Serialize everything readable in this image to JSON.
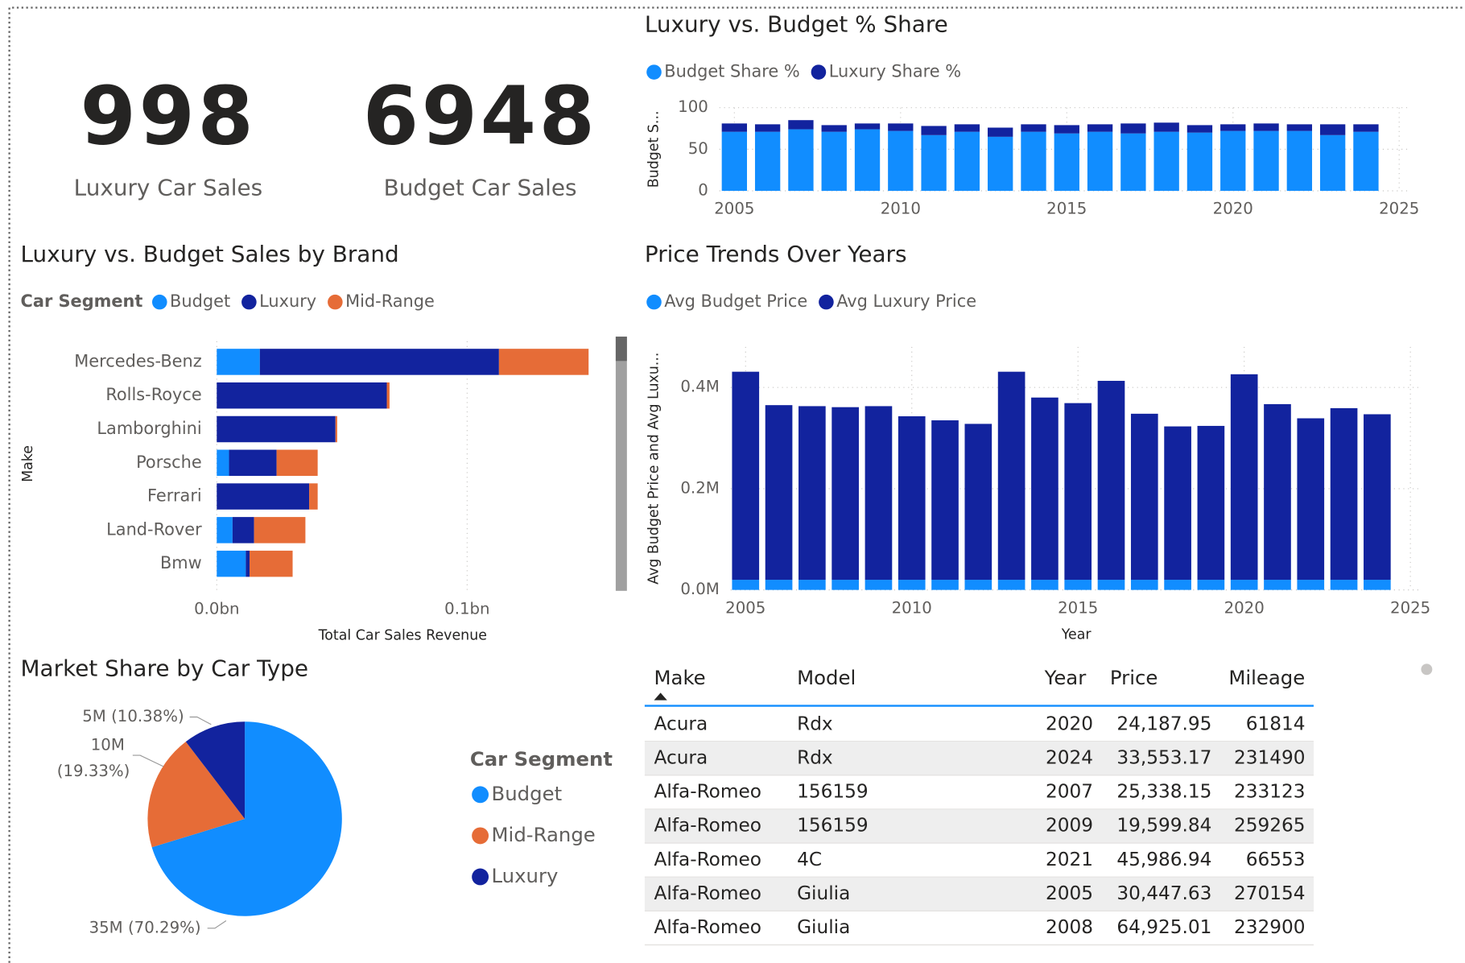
{
  "kpis": [
    {
      "value": 998,
      "label": "Luxury Car Sales"
    },
    {
      "value": 6948,
      "label": "Budget Car Sales"
    }
  ],
  "chart_data": [
    {
      "type": "bar",
      "title": "Luxury vs. Budget % Share",
      "y_label": "Budget S...",
      "x": [
        2005,
        2006,
        2007,
        2008,
        2009,
        2010,
        2011,
        2012,
        2013,
        2014,
        2015,
        2016,
        2017,
        2018,
        2019,
        2020,
        2021,
        2022,
        2023,
        2024
      ],
      "series": [
        {
          "name": "Budget Share %",
          "color": "#118DFF",
          "values": [
            71,
            71,
            74,
            71,
            74,
            72,
            67,
            71,
            65,
            71,
            69,
            71,
            69,
            71,
            70,
            72,
            72,
            72,
            67,
            71
          ]
        },
        {
          "name": "Luxury Share %",
          "color": "#12239E",
          "values": [
            10,
            9,
            11,
            8,
            7,
            9,
            11,
            9,
            11,
            9,
            10,
            9,
            12,
            11,
            9,
            8,
            9,
            8,
            13,
            9
          ]
        }
      ],
      "stacked": true,
      "xlim": [
        2004.55,
        2025.35
      ],
      "xticks": [
        2005,
        2010,
        2015,
        2020,
        2025
      ],
      "ylim": [
        0,
        100
      ],
      "yticks": [
        0,
        50,
        100
      ],
      "grid": true
    },
    {
      "type": "hbar",
      "title": "Luxury vs. Budget Sales by Brand",
      "legend_title": "Car Segment",
      "y_label": "Make",
      "x_label": "Total Car Sales Revenue",
      "categories": [
        "Mercedes-Benz",
        "Rolls-Royce",
        "Lamborghini",
        "Porsche",
        "Ferrari",
        "Land-Rover",
        "Bmw"
      ],
      "series": [
        {
          "name": "Budget",
          "color": "#118DFF",
          "values": [
            0.0172,
            0,
            0,
            0.0049,
            0,
            0.0063,
            0.0116
          ]
        },
        {
          "name": "Luxury",
          "color": "#12239E",
          "values": [
            0.0955,
            0.0679,
            0.0474,
            0.019,
            0.0369,
            0.0086,
            0.0015
          ]
        },
        {
          "name": "Mid-Range",
          "color": "#E66C37",
          "values": [
            0.0358,
            0.0011,
            0.0007,
            0.0164,
            0.0034,
            0.0205,
            0.0172
          ]
        }
      ],
      "stacked": true,
      "xlim": [
        0,
        0.15
      ],
      "xticks": [
        {
          "value": 0,
          "label": "0.0bn"
        },
        {
          "value": 0.1,
          "label": "0.1bn"
        }
      ],
      "grid": true
    },
    {
      "type": "bar",
      "title": "Price Trends Over Years",
      "y_label": "Avg Budget Price and Avg Luxu...",
      "x_label": "Year",
      "x": [
        2005,
        2006,
        2007,
        2008,
        2009,
        2010,
        2011,
        2012,
        2013,
        2014,
        2015,
        2016,
        2017,
        2018,
        2019,
        2020,
        2021,
        2022,
        2023,
        2024
      ],
      "series": [
        {
          "name": "Avg Budget Price",
          "color": "#118DFF",
          "values": [
            0.02,
            0.02,
            0.02,
            0.02,
            0.02,
            0.02,
            0.02,
            0.02,
            0.02,
            0.02,
            0.02,
            0.02,
            0.02,
            0.02,
            0.02,
            0.02,
            0.02,
            0.02,
            0.02,
            0.02
          ]
        },
        {
          "name": "Avg Luxury Price",
          "color": "#12239E",
          "values": [
            0.411,
            0.345,
            0.343,
            0.341,
            0.343,
            0.323,
            0.315,
            0.308,
            0.411,
            0.36,
            0.349,
            0.393,
            0.328,
            0.303,
            0.304,
            0.406,
            0.347,
            0.319,
            0.339,
            0.327
          ]
        }
      ],
      "stacked": true,
      "xlim": [
        2004.55,
        2025.35
      ],
      "xticks": [
        2005,
        2010,
        2015,
        2020,
        2025
      ],
      "ylim": [
        0,
        0.48
      ],
      "yticks": [
        {
          "value": 0,
          "label": "0.0M"
        },
        {
          "value": 0.2,
          "label": "0.2M"
        },
        {
          "value": 0.4,
          "label": "0.4M"
        }
      ],
      "grid": true
    },
    {
      "type": "pie",
      "title": "Market Share by Car Type",
      "legend_title": "Car Segment",
      "categories": [
        "Budget",
        "Mid-Range",
        "Luxury"
      ],
      "values": [
        70.29,
        19.33,
        10.38
      ],
      "value_labels": [
        "35M (70.29%)",
        "10M (19.33%)",
        "5M (10.38%)"
      ],
      "colors": [
        "#118DFF",
        "#E66C37",
        "#12239E"
      ]
    }
  ],
  "table": {
    "columns": [
      "Make",
      "Model",
      "Year",
      "Price",
      "Mileage"
    ],
    "rows": [
      [
        "Acura",
        "Rdx",
        2020,
        "24,187.95",
        61814
      ],
      [
        "Acura",
        "Rdx",
        2024,
        "33,553.17",
        231490
      ],
      [
        "Alfa-Romeo",
        "156159",
        2007,
        "25,338.15",
        233123
      ],
      [
        "Alfa-Romeo",
        "156159",
        2009,
        "19,599.84",
        259265
      ],
      [
        "Alfa-Romeo",
        "4C",
        2021,
        "45,986.94",
        66553
      ],
      [
        "Alfa-Romeo",
        "Giulia",
        2005,
        "30,447.63",
        270154
      ],
      [
        "Alfa-Romeo",
        "Giulia",
        2008,
        "64,925.01",
        232900
      ]
    ]
  }
}
